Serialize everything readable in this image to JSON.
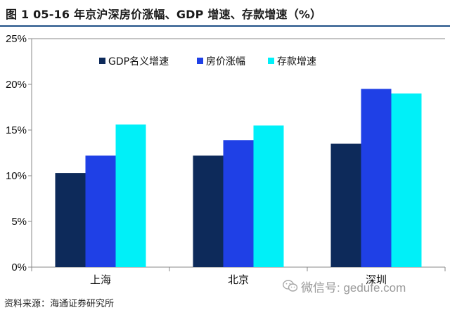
{
  "figure": {
    "title": "图 1   05-16 年京沪深房价涨幅、GDP 增速、存款增速（%）",
    "source": "资料来源：海通证券研究所",
    "watermark": "微信号: gedufe.com"
  },
  "colors": {
    "title_rule": "#1f4f86",
    "axis": "#888888"
  },
  "chart_data": {
    "type": "bar",
    "title": "",
    "xlabel": "",
    "ylabel": "",
    "categories": [
      "上海",
      "北京",
      "深圳"
    ],
    "ylim": [
      0,
      25
    ],
    "yticks": [
      0,
      5,
      10,
      15,
      20,
      25
    ],
    "ytick_labels": [
      "0%",
      "5%",
      "10%",
      "15%",
      "20%",
      "25%"
    ],
    "grid": false,
    "legend": {
      "position": "top-left",
      "orientation": "horizontal"
    },
    "series": [
      {
        "name": "GDP名义增速",
        "color": "#0d2a5a",
        "values": [
          10.3,
          12.2,
          13.5
        ]
      },
      {
        "name": "房价涨幅",
        "color": "#1f40e6",
        "values": [
          12.2,
          13.9,
          19.5
        ]
      },
      {
        "name": "存款增速",
        "color": "#00f0f8",
        "values": [
          15.6,
          15.5,
          19.0
        ]
      }
    ]
  }
}
